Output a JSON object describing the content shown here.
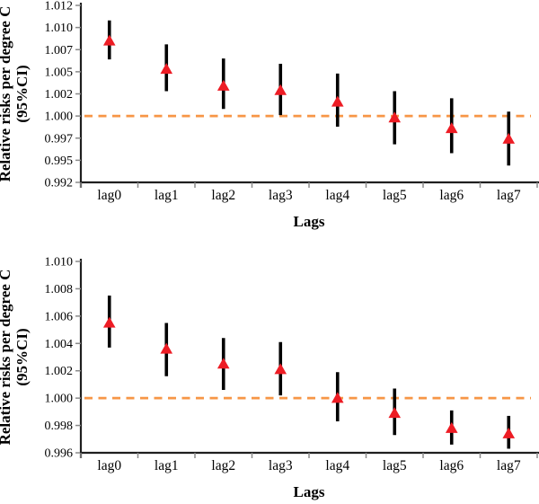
{
  "figure": {
    "description": "Two stacked error-bar panels of relative risks per degree C by lag",
    "background": "#ffffff"
  },
  "colors": {
    "marker": "#ed1c24",
    "error_bar": "#000000",
    "ref_line": "#f79646",
    "axis_line": "#1f1f1f",
    "tick_mark": "#8a8a8a",
    "text": "#000000"
  },
  "chart_data": [
    {
      "type": "scatter",
      "subtype": "point-estimate-with-95ci-errorbars",
      "title": "",
      "categories": [
        "lag0",
        "lag1",
        "lag2",
        "lag3",
        "lag4",
        "lag5",
        "lag6",
        "lag7"
      ],
      "series": [
        {
          "name": "Relative risk (95% CI)",
          "marker": "triangle-up",
          "values": [
            1.008,
            1.0048,
            1.0029,
            1.0024,
            1.0011,
            0.9993,
            0.9981,
            0.9969
          ],
          "ci_low": [
            1.0059,
            1.0023,
            1.0003,
            0.9996,
            0.9983,
            0.9963,
            0.9953,
            0.9939
          ],
          "ci_high": [
            1.0103,
            1.0076,
            1.006,
            1.0054,
            1.0043,
            1.0023,
            1.0015,
            1.0
          ]
        }
      ],
      "xlabel": "Lags",
      "ylabel_line1": "Relative risks per degree C",
      "ylabel_line2": "(95%CI)",
      "ylim": [
        0.992,
        1.012
      ],
      "ytick_labels": [
        "1.012",
        "1.010",
        "1.007",
        "1.005",
        "1.002",
        "1.000",
        "0.997",
        "0.995",
        "0.992"
      ],
      "ytick_values": [
        1.012,
        1.0095,
        1.007,
        1.0045,
        1.002,
        0.9995,
        0.997,
        0.9945,
        0.992
      ],
      "ref_line": {
        "label": "1.000",
        "value": 1.0,
        "style": "dashed"
      },
      "grid": false,
      "legend": "none"
    },
    {
      "type": "scatter",
      "subtype": "point-estimate-with-95ci-errorbars",
      "title": "",
      "categories": [
        "lag0",
        "lag1",
        "lag2",
        "lag3",
        "lag4",
        "lag5",
        "lag6",
        "lag7"
      ],
      "series": [
        {
          "name": "Relative risk (95% CI)",
          "marker": "triangle-up",
          "values": [
            1.0055,
            1.0036,
            1.0025,
            1.0021,
            1.0,
            0.9989,
            0.9978,
            0.9974
          ],
          "ci_low": [
            1.0037,
            1.0016,
            1.0006,
            1.0002,
            0.9983,
            0.9973,
            0.9966,
            0.9963
          ],
          "ci_high": [
            1.0075,
            1.0055,
            1.0044,
            1.0041,
            1.0019,
            1.0007,
            0.9991,
            0.9987
          ]
        }
      ],
      "xlabel": "Lags",
      "ylabel_line1": "Relative risks per degree C",
      "ylabel_line2": "(95%CI)",
      "ylim": [
        0.996,
        1.01
      ],
      "ytick_labels": [
        "1.010",
        "1.008",
        "1.006",
        "1.004",
        "1.002",
        "1.000",
        "0.998",
        "0.996"
      ],
      "ytick_values": [
        1.01,
        1.008,
        1.006,
        1.004,
        1.002,
        1.0,
        0.998,
        0.996
      ],
      "ref_line": {
        "label": "1.000",
        "value": 1.0,
        "style": "dashed"
      },
      "grid": false,
      "legend": "none"
    }
  ]
}
